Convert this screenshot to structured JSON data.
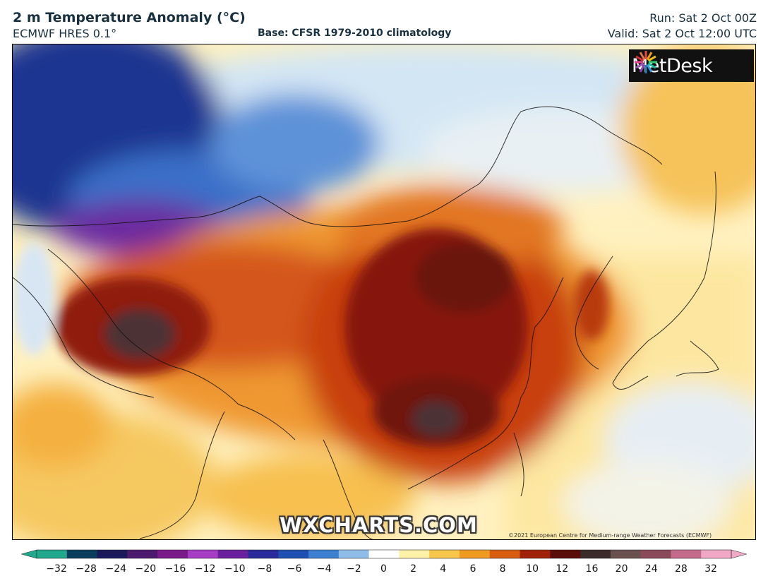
{
  "header": {
    "title": "2 m Temperature Anomaly (°C)",
    "model": "ECMWF HRES 0.1°",
    "base": "Base: CFSR 1979-2010 climatology",
    "run": "Run: Sat 2 Oct 00Z",
    "valid": "Valid: Sat 2 Oct 12:00 UTC"
  },
  "branding": {
    "logo_text": "MetDesk",
    "watermark": "WXCHARTS.COM",
    "copyright": "©2021 European Centre for Medium-range Weather Forecasts (ECMWF)"
  },
  "icons": {
    "logo_mark": "metdesk-flower-icon"
  },
  "colorbar": {
    "ticks": [
      "−32",
      "−28",
      "−24",
      "−20",
      "−16",
      "−12",
      "−10",
      "−8",
      "−6",
      "−4",
      "−2",
      "0",
      "2",
      "4",
      "6",
      "8",
      "10",
      "12",
      "16",
      "20",
      "24",
      "28",
      "32"
    ],
    "colors": [
      "#1fa88c",
      "#0a3d5c",
      "#1a1a5a",
      "#4b1a6e",
      "#7a1a8a",
      "#a73cc4",
      "#6a1f9e",
      "#2a2a9a",
      "#1f4fb0",
      "#3d7fd0",
      "#8fbde8",
      "#ffffff",
      "#fff2a8",
      "#f7c64a",
      "#ef9a20",
      "#d85d10",
      "#a12108",
      "#5a0c08",
      "#3a2a2a",
      "#6b5050",
      "#8a4a5a",
      "#c46a8a",
      "#f0a8c4"
    ]
  },
  "map_colors": {
    "cold_deep": "#1b2f8a",
    "cold": "#3f7fd0",
    "cool": "#cfe3f3",
    "neutral": "#fff6c8",
    "warm": "#f4b640",
    "hot": "#d8621a",
    "very_hot": "#8f1f0c",
    "extreme": "#4a3034"
  }
}
